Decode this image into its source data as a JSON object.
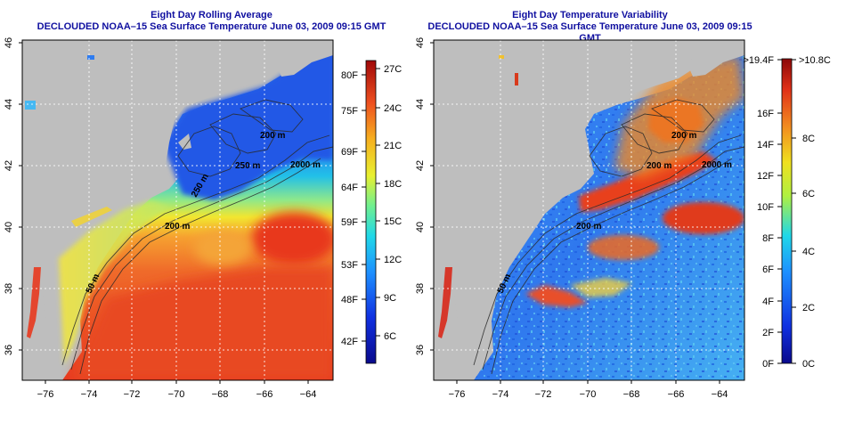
{
  "left_panel": {
    "title_line1": "Eight Day Rolling Average",
    "title_line2": "DECLOUDED NOAA–15 Sea Surface Temperature June 03, 2009 09:15 GMT",
    "x_ticks": [
      "−76",
      "−74",
      "−72",
      "−70",
      "−68",
      "−66",
      "−64"
    ],
    "y_ticks": [
      "46",
      "44",
      "42",
      "40",
      "38",
      "36"
    ],
    "colorbar_f": [
      "80F",
      "75F",
      "69F",
      "64F",
      "59F",
      "53F",
      "48F",
      "42F"
    ],
    "colorbar_c": [
      "27C",
      "24C",
      "21C",
      "18C",
      "15C",
      "12C",
      "9C",
      "6C"
    ],
    "isobath_labels": [
      "200 m",
      "2000 m",
      "250 m",
      "250 m",
      "200 m",
      "50 m"
    ]
  },
  "right_panel": {
    "title_line1": "Eight Day Temperature Variability",
    "title_line2": "DECLOUDED NOAA–15 Sea Surface Temperature June 03, 2009 09:15 GMT",
    "x_ticks": [
      "−76",
      "−74",
      "−72",
      "−70",
      "−68",
      "−66",
      "−64"
    ],
    "y_ticks": [
      "46",
      "44",
      "42",
      "40",
      "38",
      "36"
    ],
    "colorbar_f": [
      ">19.4F",
      "16F",
      "14F",
      "12F",
      "10F",
      "8F",
      "6F",
      "4F",
      "2F",
      "0F"
    ],
    "colorbar_c": [
      ">10.8C",
      "8C",
      "6C",
      "4C",
      "2C",
      "0C"
    ],
    "isobath_labels": [
      "200 m",
      "2000 m",
      "200 m",
      "200 m",
      "50 m"
    ]
  },
  "colors": {
    "title": "#1010a0",
    "land": "#bebebe",
    "grid": "#ffffff"
  }
}
